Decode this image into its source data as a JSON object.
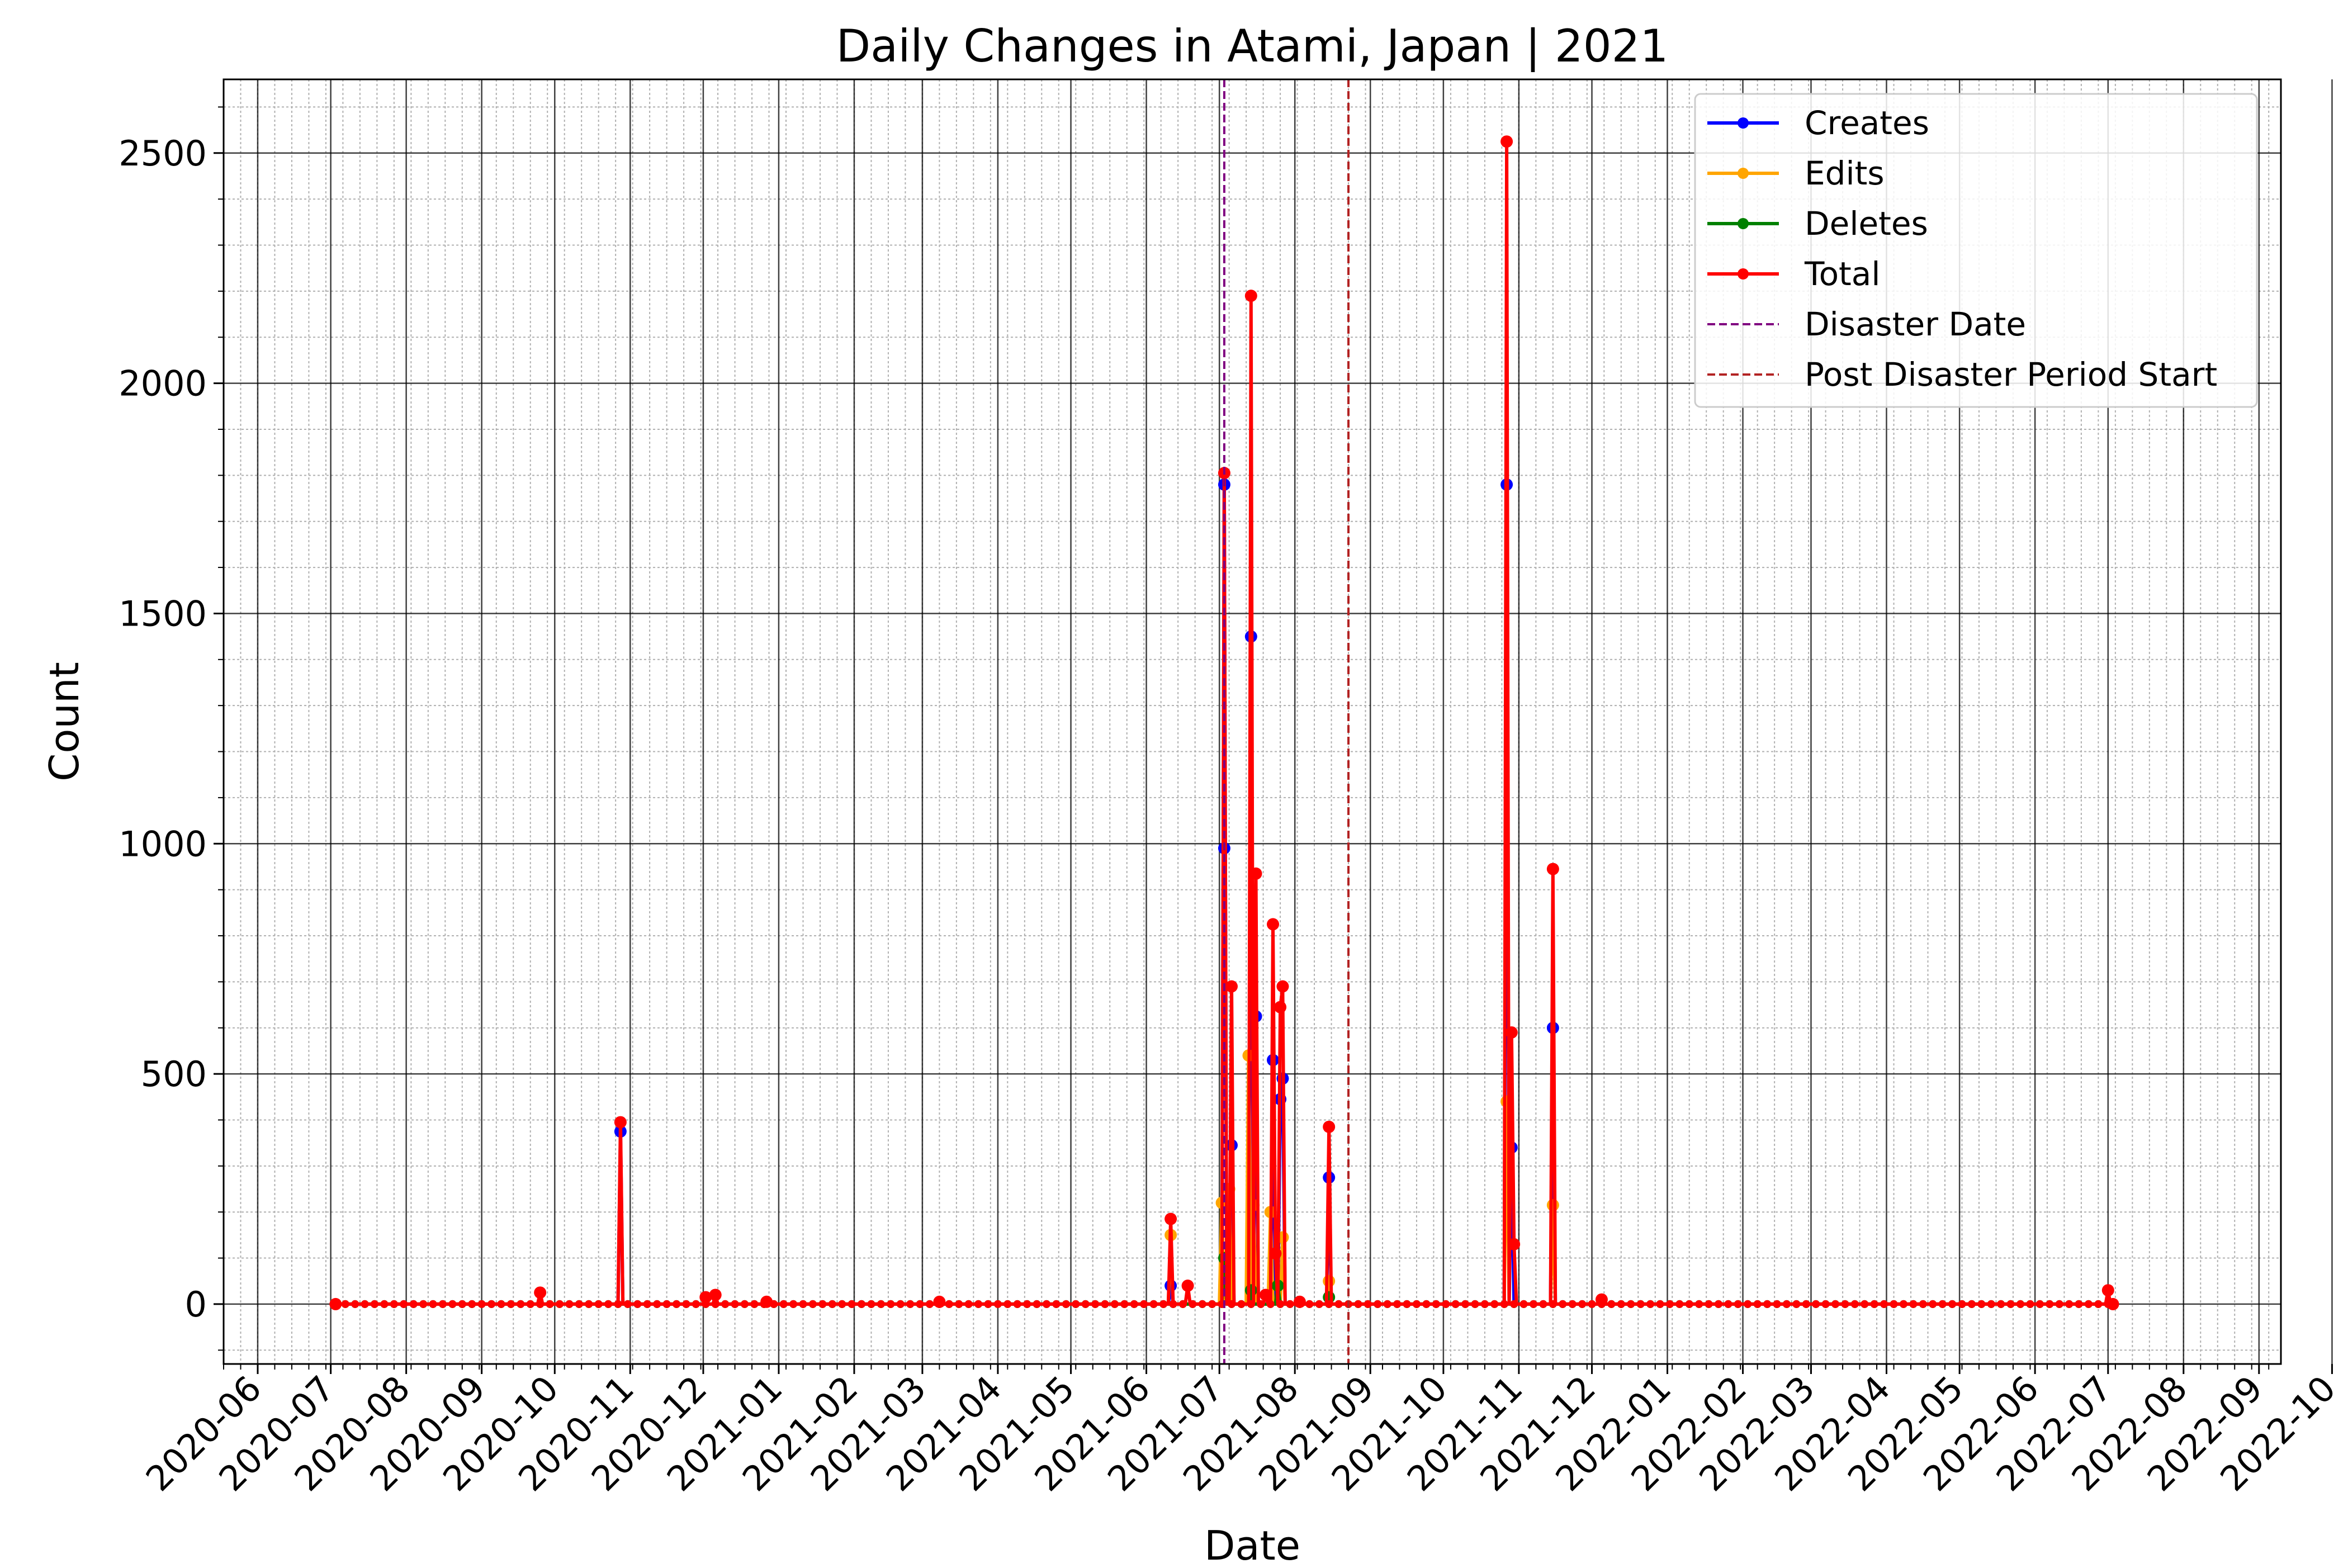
{
  "chart_data": {
    "type": "line",
    "title": "Daily Changes in Atami, Japan | 2021",
    "xlabel": "Date",
    "ylabel": "Count",
    "x_range": [
      "2020-05-18",
      "2022-09-10"
    ],
    "ylim": [
      -130,
      2660
    ],
    "y_ticks": [
      0,
      500,
      1000,
      1500,
      2000,
      2500
    ],
    "y_minor_step": 100,
    "x_tick_labels": [
      "2020-06",
      "2020-07",
      "2020-08",
      "2020-09",
      "2020-10",
      "2020-11",
      "2020-12",
      "2021-01",
      "2021-02",
      "2021-03",
      "2021-04",
      "2021-05",
      "2021-06",
      "2021-07",
      "2021-08",
      "2021-09",
      "2021-10",
      "2021-11",
      "2021-12",
      "2022-01",
      "2022-02",
      "2022-03",
      "2022-04",
      "2022-05",
      "2022-06",
      "2022-07",
      "2022-08",
      "2022-09",
      "2022-10"
    ],
    "x_ticks": [
      "2020-06-01",
      "2020-07-01",
      "2020-08-01",
      "2020-09-01",
      "2020-10-01",
      "2020-11-01",
      "2020-12-01",
      "2021-01-01",
      "2021-02-01",
      "2021-03-01",
      "2021-04-01",
      "2021-05-01",
      "2021-06-01",
      "2021-07-01",
      "2021-08-01",
      "2021-09-01",
      "2021-10-01",
      "2021-11-01",
      "2021-12-01",
      "2022-01-01",
      "2022-02-01",
      "2022-03-01",
      "2022-04-01",
      "2022-05-01",
      "2022-06-01",
      "2022-07-01",
      "2022-08-01",
      "2022-09-01",
      "2022-10-01"
    ],
    "grid": {
      "major": true,
      "minor": true
    },
    "legend_position": "top-right",
    "date_start": "2020-07-03",
    "date_end": "2022-07-03",
    "series": [
      {
        "name": "Creates",
        "color": "#0000ff",
        "points": [
          [
            "2020-10-28",
            375
          ],
          [
            "2021-06-11",
            40
          ],
          [
            "2021-07-03",
            990
          ],
          [
            "2021-07-03",
            1780
          ],
          [
            "2021-07-06",
            345
          ],
          [
            "2021-07-14",
            1450
          ],
          [
            "2021-07-16",
            625
          ],
          [
            "2021-07-23",
            530
          ],
          [
            "2021-07-26",
            445
          ],
          [
            "2021-07-27",
            490
          ],
          [
            "2021-08-15",
            275
          ],
          [
            "2021-10-27",
            1780
          ],
          [
            "2021-10-29",
            340
          ],
          [
            "2021-11-15",
            600
          ]
        ]
      },
      {
        "name": "Edits",
        "color": "#ffa500",
        "points": [
          [
            "2021-06-11",
            150
          ],
          [
            "2021-07-02",
            220
          ],
          [
            "2021-07-05",
            250
          ],
          [
            "2021-07-13",
            540
          ],
          [
            "2021-07-15",
            215
          ],
          [
            "2021-07-22",
            200
          ],
          [
            "2021-07-27",
            145
          ],
          [
            "2021-08-15",
            50
          ],
          [
            "2021-10-27",
            440
          ],
          [
            "2021-11-15",
            215
          ]
        ]
      },
      {
        "name": "Deletes",
        "color": "#008000",
        "points": [
          [
            "2021-07-03",
            100
          ],
          [
            "2021-07-14",
            30
          ],
          [
            "2021-07-25",
            40
          ],
          [
            "2021-08-15",
            15
          ]
        ]
      },
      {
        "name": "Total",
        "color": "#ff0000",
        "points": [
          [
            "2020-07-03",
            0
          ],
          [
            "2020-09-25",
            25
          ],
          [
            "2020-10-28",
            395
          ],
          [
            "2020-12-02",
            15
          ],
          [
            "2020-12-06",
            20
          ],
          [
            "2020-12-27",
            5
          ],
          [
            "2021-03-08",
            5
          ],
          [
            "2021-06-11",
            185
          ],
          [
            "2021-06-18",
            40
          ],
          [
            "2021-07-03",
            1805
          ],
          [
            "2021-07-06",
            690
          ],
          [
            "2021-07-14",
            2190
          ],
          [
            "2021-07-16",
            935
          ],
          [
            "2021-07-20",
            20
          ],
          [
            "2021-07-23",
            825
          ],
          [
            "2021-07-24",
            110
          ],
          [
            "2021-07-26",
            645
          ],
          [
            "2021-07-27",
            690
          ],
          [
            "2021-08-03",
            5
          ],
          [
            "2021-08-15",
            385
          ],
          [
            "2021-10-27",
            2525
          ],
          [
            "2021-10-29",
            590
          ],
          [
            "2021-10-30",
            130
          ],
          [
            "2021-11-15",
            945
          ],
          [
            "2021-12-05",
            10
          ],
          [
            "2022-07-01",
            30
          ],
          [
            "2022-07-03",
            0
          ]
        ]
      }
    ],
    "reference_lines": [
      {
        "name": "Disaster Date",
        "date": "2021-07-03",
        "color": "#800080",
        "style": "dashed"
      },
      {
        "name": "Post Disaster Period Start",
        "date": "2021-08-23",
        "color": "#b22222",
        "style": "dashed"
      }
    ]
  }
}
